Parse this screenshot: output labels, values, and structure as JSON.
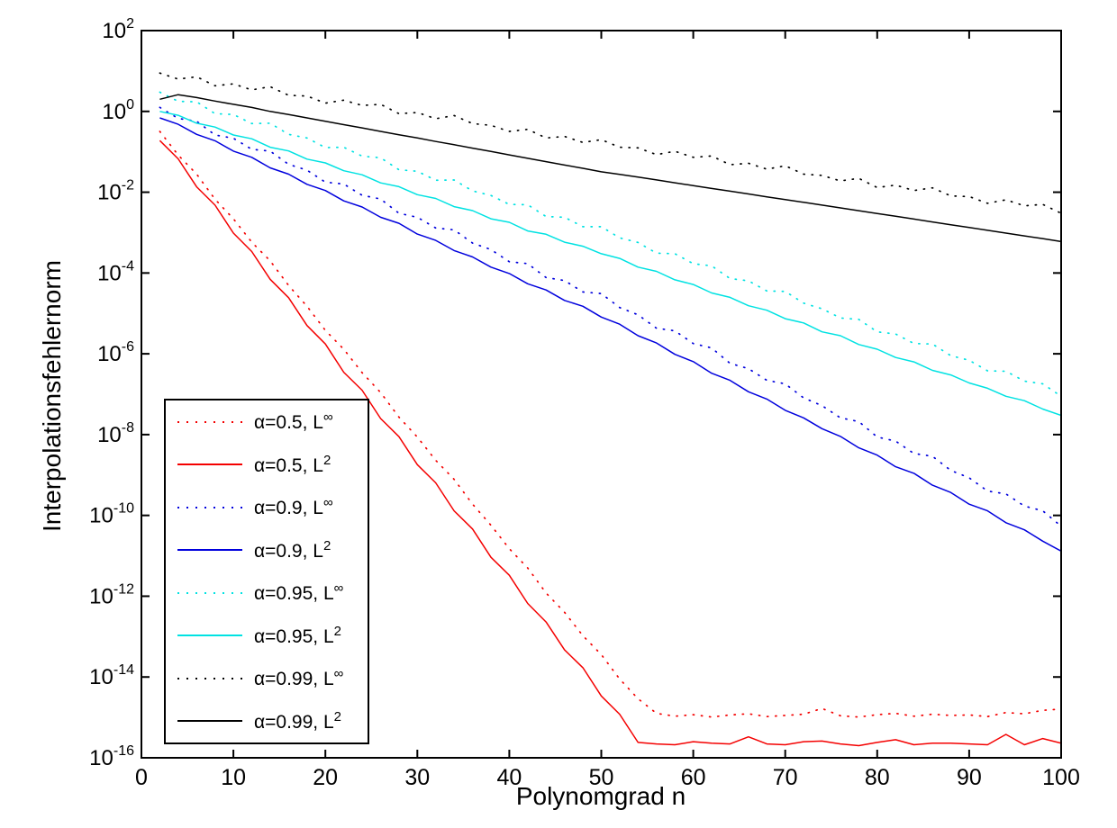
{
  "figure": {
    "background": "#ffffff",
    "axis_color": "#000000"
  },
  "chart_data": {
    "type": "line",
    "title": "",
    "xlabel": "Polynomgrad n",
    "ylabel": "Interpolationsfehlernorm",
    "grid": false,
    "x_axis": {
      "min": 0,
      "max": 100,
      "ticks": [
        0,
        10,
        20,
        30,
        40,
        50,
        60,
        70,
        80,
        90,
        100
      ]
    },
    "y_axis": {
      "scale": "log10",
      "min_exp": -16,
      "max_exp": 2,
      "tick_base": "10",
      "tick_exponents": [
        2,
        0,
        -2,
        -4,
        -6,
        -8,
        -10,
        -12,
        -14,
        -16
      ]
    },
    "legend": {
      "position": "lower-left"
    },
    "x": [
      2,
      4,
      6,
      8,
      10,
      12,
      14,
      16,
      18,
      20,
      22,
      24,
      26,
      28,
      30,
      32,
      34,
      36,
      38,
      40,
      42,
      44,
      46,
      48,
      50,
      52,
      54,
      56,
      58,
      60,
      62,
      64,
      66,
      68,
      70,
      72,
      74,
      76,
      78,
      80,
      82,
      84,
      86,
      88,
      90,
      92,
      94,
      96,
      98,
      100
    ],
    "series": [
      {
        "key": "alpha-05-linf",
        "name": "α=0.5, L∞",
        "legend_label": "α=0.5, L",
        "legend_sup": "∞",
        "color": "#f40000",
        "style": "dotted",
        "y": [
          0.32,
          0.083,
          0.028,
          0.0067,
          0.0022,
          0.00058,
          0.0002,
          4.9e-05,
          1.5e-05,
          3.8e-06,
          1.3e-06,
          3.4e-07,
          1.1e-07,
          2.7e-08,
          8.7e-09,
          2.3e-09,
          7.8e-10,
          1.9e-10,
          5.7e-11,
          1.5e-11,
          5e-12,
          1.2e-12,
          4e-13,
          1.05e-13,
          3.6e-14,
          8.9e-15,
          2.9e-15,
          1.26e-15,
          1.07e-15,
          1.17e-15,
          1.02e-15,
          1.15e-15,
          1.23e-15,
          1.05e-15,
          1.12e-15,
          1.2e-15,
          1.66e-15,
          1.1e-15,
          1.02e-15,
          1.17e-15,
          1.26e-15,
          1.07e-15,
          1.2e-15,
          1.12e-15,
          1.15e-15,
          1.05e-15,
          1.32e-15,
          1.23e-15,
          1.5e-15,
          1.6e-15
        ]
      },
      {
        "key": "alpha-05-l2",
        "name": "α=0.5, L2",
        "legend_label": "α=0.5, L",
        "legend_sup": "2",
        "color": "#f40000",
        "style": "solid",
        "y": [
          0.19,
          0.067,
          0.0136,
          0.0048,
          0.00097,
          0.00034,
          7e-05,
          2.45e-05,
          5e-06,
          1.75e-06,
          3.5e-07,
          1.25e-07,
          2.5e-08,
          8.9e-09,
          1.8e-09,
          6.4e-10,
          1.3e-10,
          4.6e-11,
          9.2e-12,
          3.3e-12,
          6.6e-13,
          2.3e-13,
          4.7e-14,
          1.7e-14,
          3.4e-15,
          1.2e-15,
          2.4e-16,
          2.2e-16,
          2.1e-16,
          2.5e-16,
          2.3e-16,
          2.2e-16,
          3.3e-16,
          2.2e-16,
          2.1e-16,
          2.5e-16,
          2.6e-16,
          2.2e-16,
          2e-16,
          2.4e-16,
          2.8e-16,
          2.1e-16,
          2.3e-16,
          2.3e-16,
          2.2e-16,
          2.1e-16,
          3.8e-16,
          2.1e-16,
          3e-16,
          2.3e-16
        ]
      },
      {
        "key": "alpha-09-linf",
        "name": "α=0.9, L∞",
        "legend_label": "α=0.9, L",
        "legend_sup": "∞",
        "color": "#0000dd",
        "style": "dotted",
        "y": [
          1.26,
          0.67,
          0.57,
          0.26,
          0.217,
          0.115,
          0.104,
          0.049,
          0.035,
          0.0177,
          0.0159,
          0.0084,
          0.0068,
          0.003,
          0.0024,
          0.0013,
          0.00117,
          0.00055,
          0.00038,
          0.00019,
          0.000171,
          7.7e-05,
          6.5e-05,
          3.4e-05,
          3.1e-05,
          1.4e-05,
          9.2e-06,
          4.3e-06,
          3.7e-06,
          1.8e-06,
          1.4e-06,
          5.8e-07,
          4.3e-07,
          2.2e-07,
          1.8e-07,
          8.1e-08,
          5.2e-08,
          2.6e-08,
          2.1e-08,
          8.7e-09,
          6.9e-09,
          3.4e-09,
          2.9e-09,
          1.3e-09,
          8.5e-10,
          4e-10,
          3.4e-10,
          1.7e-10,
          1.3e-10,
          5.4e-11
        ]
      },
      {
        "key": "alpha-09-l2",
        "name": "α=0.9, L2",
        "legend_label": "α=0.9, L",
        "legend_sup": "2",
        "color": "#0000dd",
        "style": "solid",
        "y": [
          0.69,
          0.48,
          0.27,
          0.188,
          0.104,
          0.073,
          0.04,
          0.028,
          0.0157,
          0.011,
          0.0061,
          0.0043,
          0.0024,
          0.0017,
          0.00092,
          0.00064,
          0.00036,
          0.00025,
          0.00014,
          9.7e-05,
          5.4e-05,
          3.8e-05,
          2.1e-05,
          1.5e-05,
          8.1e-06,
          5.4e-06,
          2.8e-06,
          1.85e-06,
          9.7e-07,
          6.4e-07,
          3.3e-07,
          2.2e-07,
          1.15e-07,
          7.6e-08,
          4e-08,
          2.6e-08,
          1.4e-08,
          9e-09,
          4.7e-09,
          3.1e-09,
          1.6e-09,
          1.1e-09,
          5.6e-10,
          3.7e-10,
          1.9e-10,
          1.3e-10,
          6.6e-11,
          4.4e-11,
          2.3e-11,
          1.3e-11
        ]
      },
      {
        "key": "alpha-095-linf",
        "name": "α=0.95, L∞",
        "legend_label": "α=0.95, L",
        "legend_sup": "∞",
        "color": "#00e2e2",
        "style": "dotted",
        "y": [
          3.0,
          1.77,
          1.73,
          0.88,
          0.84,
          0.5,
          0.51,
          0.27,
          0.22,
          0.127,
          0.13,
          0.078,
          0.071,
          0.036,
          0.033,
          0.0197,
          0.02,
          0.0108,
          0.0083,
          0.005,
          0.0049,
          0.0025,
          0.0024,
          0.0014,
          0.0014,
          0.00074,
          0.00057,
          0.00031,
          0.0003,
          0.00017,
          0.00015,
          7.3e-05,
          6.4e-05,
          3.6e-05,
          3.5e-05,
          1.8e-05,
          1.3e-05,
          7.7e-06,
          7.1e-06,
          3.5e-06,
          3.1e-06,
          1.8e-06,
          1.75e-06,
          9e-07,
          6.9e-07,
          3.8e-07,
          3.7e-07,
          2.1e-07,
          1.8e-07,
          8.9e-08
        ]
      },
      {
        "key": "alpha-095-l2",
        "name": "α=0.95, L2",
        "legend_label": "α=0.95, L",
        "legend_sup": "2",
        "color": "#00e2e2",
        "style": "solid",
        "y": [
          1.0,
          0.8,
          0.51,
          0.41,
          0.26,
          0.21,
          0.13,
          0.105,
          0.066,
          0.053,
          0.034,
          0.027,
          0.017,
          0.0137,
          0.0087,
          0.007,
          0.0044,
          0.0035,
          0.0022,
          0.0018,
          0.0011,
          0.00091,
          0.00058,
          0.00046,
          0.0003,
          0.00023,
          0.00014,
          0.00011,
          6.8e-05,
          5.2e-05,
          3.2e-05,
          2.5e-05,
          1.55e-05,
          1.2e-05,
          7.4e-06,
          5.8e-06,
          3.5e-06,
          2.8e-06,
          1.7e-06,
          1.3e-06,
          8.1e-07,
          6.3e-07,
          3.9e-07,
          3e-07,
          1.9e-07,
          1.4e-07,
          8.9e-08,
          6.9e-08,
          4.3e-08,
          3e-08
        ]
      },
      {
        "key": "alpha-099-linf",
        "name": "α=0.99, L∞",
        "legend_label": "α=0.99, L",
        "legend_sup": "∞",
        "color": "#000000",
        "style": "dotted",
        "y": [
          8.9,
          6.3,
          7.2,
          4.3,
          4.8,
          3.4,
          4.1,
          2.5,
          2.4,
          1.6,
          1.9,
          1.4,
          1.5,
          0.88,
          0.94,
          0.66,
          0.79,
          0.5,
          0.45,
          0.32,
          0.36,
          0.22,
          0.24,
          0.17,
          0.2,
          0.13,
          0.125,
          0.085,
          0.103,
          0.073,
          0.079,
          0.048,
          0.052,
          0.037,
          0.045,
          0.028,
          0.026,
          0.019,
          0.022,
          0.013,
          0.015,
          0.011,
          0.0128,
          0.0081,
          0.0078,
          0.0053,
          0.0065,
          0.0046,
          0.005,
          0.003
        ]
      },
      {
        "key": "alpha-099-l2",
        "name": "α=0.99, L2",
        "legend_label": "α=0.99, L",
        "legend_sup": "2",
        "color": "#000000",
        "style": "solid",
        "y": [
          2.0,
          2.6,
          2.2,
          1.8,
          1.5,
          1.25,
          1.0,
          0.84,
          0.69,
          0.57,
          0.47,
          0.39,
          0.32,
          0.265,
          0.22,
          0.18,
          0.15,
          0.123,
          0.102,
          0.084,
          0.069,
          0.057,
          0.047,
          0.039,
          0.032,
          0.0276,
          0.0236,
          0.0201,
          0.0171,
          0.0146,
          0.0124,
          0.0106,
          0.00905,
          0.0077,
          0.00658,
          0.00561,
          0.00479,
          0.00408,
          0.00348,
          0.00297,
          0.00253,
          0.00216,
          0.00184,
          0.00157,
          0.00134,
          0.00114,
          0.00097,
          0.00083,
          0.00071,
          0.0006
        ]
      }
    ]
  }
}
